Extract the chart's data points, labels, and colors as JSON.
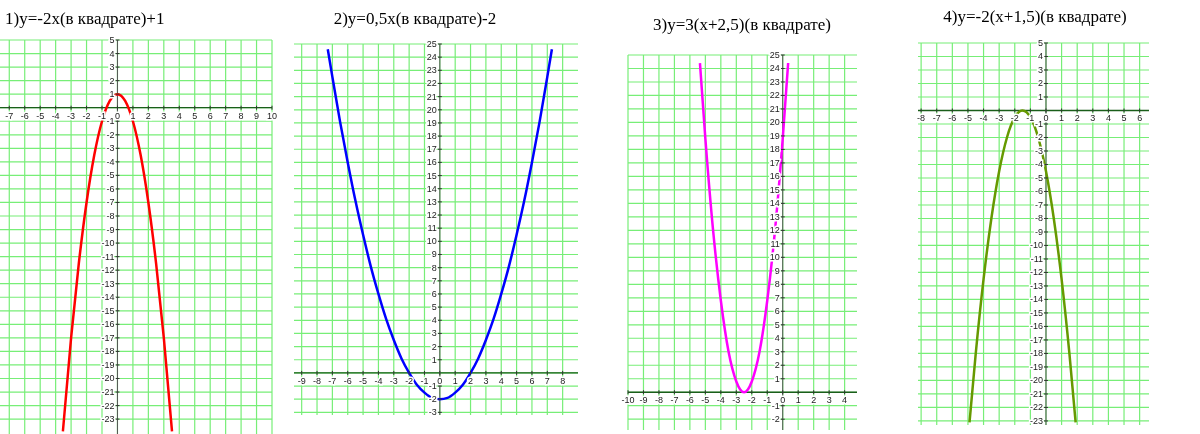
{
  "chart_data": [
    {
      "type": "line",
      "title": "1)y=-2x(в квадрате)+1",
      "x": [
        -3.53,
        -3,
        -2.5,
        -2,
        -1.5,
        -1,
        -0.5,
        0,
        0.5,
        1,
        1.5,
        2,
        2.5,
        3,
        3.53
      ],
      "series": [
        {
          "color": "#ff0000",
          "values": [
            -23.9,
            -17,
            -11.5,
            -7,
            -3.5,
            -1,
            0.5,
            1,
            0.5,
            -1,
            -3.5,
            -7,
            -11.5,
            -17,
            -23.9
          ]
        }
      ],
      "xlim": [
        -7.6,
        10
      ],
      "ylim": [
        -24.1,
        5
      ],
      "xticks": [
        -7,
        -6,
        -5,
        -4,
        -3,
        -2,
        -1,
        0,
        1,
        2,
        3,
        4,
        5,
        6,
        7,
        8,
        9,
        10
      ],
      "yticks": [
        -23,
        -22,
        -21,
        -20,
        -19,
        -18,
        -17,
        -16,
        -15,
        -14,
        -13,
        -12,
        -11,
        -10,
        -9,
        -8,
        -7,
        -6,
        -5,
        -4,
        -3,
        -2,
        -1,
        1,
        2,
        3,
        4,
        5
      ],
      "grid": true
    },
    {
      "type": "line",
      "title": "2)y=0,5x(в квадрате)-2",
      "x": [
        -7.3,
        -7,
        -6.5,
        -6,
        -5.5,
        -5,
        -4.5,
        -4,
        -3.5,
        -3,
        -2.5,
        -2,
        -1.5,
        -1,
        -0.5,
        0,
        0.5,
        1,
        1.5,
        2,
        2.5,
        3,
        3.5,
        4,
        4.5,
        5,
        5.5,
        6,
        6.5,
        7,
        7.3
      ],
      "series": [
        {
          "color": "#0000ff",
          "values": [
            24.6,
            22.5,
            19.1,
            16,
            13.1,
            10.5,
            8.1,
            6,
            4.1,
            2.5,
            1.1,
            0,
            -0.9,
            -1.5,
            -1.9,
            -2,
            -1.9,
            -1.5,
            -0.9,
            0,
            1.1,
            2.5,
            4.1,
            6,
            8.1,
            10.5,
            13.1,
            16,
            19.1,
            22.5,
            24.6
          ]
        }
      ],
      "xlim": [
        -9.5,
        9
      ],
      "ylim": [
        -3.2,
        25
      ],
      "xticks": [
        -9,
        -8,
        -7,
        -6,
        -5,
        -4,
        -3,
        -2,
        -1,
        0,
        1,
        2,
        3,
        4,
        5,
        6,
        7,
        8
      ],
      "yticks": [
        -3,
        -2,
        -1,
        1,
        2,
        3,
        4,
        5,
        6,
        7,
        8,
        9,
        10,
        11,
        12,
        13,
        14,
        15,
        16,
        17,
        18,
        19,
        20,
        21,
        22,
        23,
        24,
        25
      ],
      "grid": true
    },
    {
      "type": "line",
      "title": "3)y=3(x+2,5)(в квадрате)",
      "x": [
        -5.35,
        -5,
        -4.5,
        -4,
        -3.5,
        -3,
        -2.75,
        -2.5,
        -2.25,
        -2,
        -1.5,
        -1,
        -0.5,
        0,
        0.35
      ],
      "series": [
        {
          "color": "#ff00ff",
          "values": [
            24.4,
            18.8,
            12,
            6.8,
            3,
            0.8,
            0.2,
            0,
            0.2,
            0.8,
            3,
            6.8,
            12,
            18.8,
            24.4
          ]
        }
      ],
      "xlim": [
        -10,
        4.8
      ],
      "ylim": [
        -2.8,
        25
      ],
      "xticks": [
        -10,
        -9,
        -8,
        -7,
        -6,
        -5,
        -4,
        -3,
        -2,
        -1,
        0,
        1,
        2,
        3,
        4
      ],
      "yticks": [
        -2,
        -1,
        1,
        2,
        3,
        4,
        5,
        6,
        7,
        8,
        9,
        10,
        11,
        12,
        13,
        14,
        15,
        16,
        17,
        18,
        19,
        20,
        21,
        22,
        23,
        24,
        25
      ],
      "grid": true
    },
    {
      "type": "line",
      "title": "4)y=-2(x+1,5)(в квадрате)",
      "x": [
        -4.9,
        -4.5,
        -4,
        -3.5,
        -3,
        -2.5,
        -2,
        -1.5,
        -1,
        -0.5,
        0,
        0.5,
        1,
        1.5,
        1.9
      ],
      "series": [
        {
          "color": "#669900",
          "values": [
            -23.1,
            -18,
            -12.5,
            -8,
            -4.5,
            -2,
            -0.5,
            0,
            -0.5,
            -2,
            -4.5,
            -8,
            -12.5,
            -18,
            -23.1
          ]
        }
      ],
      "xlim": [
        -8.2,
        6.6
      ],
      "ylim": [
        -23.3,
        5
      ],
      "xticks": [
        -8,
        -7,
        -6,
        -5,
        -4,
        -3,
        -2,
        -1,
        0,
        1,
        2,
        3,
        4,
        5,
        6
      ],
      "yticks": [
        -23,
        -22,
        -21,
        -20,
        -19,
        -18,
        -17,
        -16,
        -15,
        -14,
        -13,
        -12,
        -11,
        -10,
        -9,
        -8,
        -7,
        -6,
        -5,
        -4,
        -3,
        -2,
        -1,
        1,
        2,
        3,
        4,
        5
      ],
      "grid": true
    }
  ]
}
